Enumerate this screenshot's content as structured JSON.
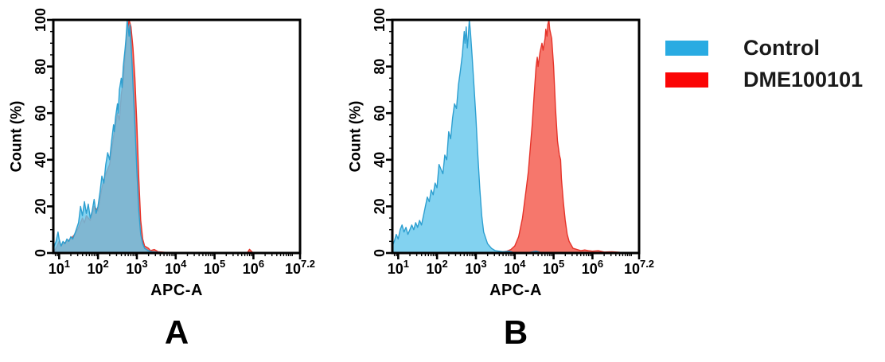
{
  "figure": {
    "background": "#ffffff",
    "legend": {
      "entries": [
        {
          "label": "Control",
          "swatch_color": "#29ABE2",
          "swatch_name": "control-color-swatch"
        },
        {
          "label": "DME100101",
          "swatch_color": "#FB0505",
          "swatch_name": "dme100101-color-swatch"
        }
      ]
    }
  },
  "chart_data": [
    {
      "panel": "A",
      "letter": "A",
      "type": "area",
      "subtype": "flow-cytometry-histogram-overlay",
      "x_scale": "log10",
      "xlabel": "APC-A",
      "ylabel": "Count  (%)",
      "xlim_log10": [
        0.85,
        7.2
      ],
      "ylim": [
        0,
        100
      ],
      "xticks": [
        {
          "v": 1,
          "base": "10",
          "exp": "1"
        },
        {
          "v": 2,
          "base": "10",
          "exp": "2"
        },
        {
          "v": 3,
          "base": "10",
          "exp": "3"
        },
        {
          "v": 4,
          "base": "10",
          "exp": "4"
        },
        {
          "v": 5,
          "base": "10",
          "exp": "5"
        },
        {
          "v": 6,
          "base": "10",
          "exp": "6"
        },
        {
          "v": 7.2,
          "base": "10",
          "exp": "7.2"
        }
      ],
      "yticks": [
        0,
        20,
        40,
        60,
        80,
        100
      ],
      "grid": false,
      "series": [
        {
          "name": "DME100101",
          "fill": "#F6776C",
          "stroke": "#E5332A",
          "opacity": 1,
          "points": [
            [
              0.88,
              1
            ],
            [
              0.95,
              3
            ],
            [
              1.0,
              5
            ],
            [
              1.05,
              3
            ],
            [
              1.1,
              4
            ],
            [
              1.2,
              5
            ],
            [
              1.3,
              6
            ],
            [
              1.4,
              8
            ],
            [
              1.5,
              11
            ],
            [
              1.6,
              15
            ],
            [
              1.65,
              13
            ],
            [
              1.7,
              16
            ],
            [
              1.8,
              14
            ],
            [
              1.9,
              20
            ],
            [
              2.0,
              18
            ],
            [
              2.1,
              28
            ],
            [
              2.2,
              34
            ],
            [
              2.3,
              38
            ],
            [
              2.4,
              50
            ],
            [
              2.5,
              60
            ],
            [
              2.55,
              57
            ],
            [
              2.6,
              68
            ],
            [
              2.65,
              74
            ],
            [
              2.7,
              85
            ],
            [
              2.75,
              95
            ],
            [
              2.8,
              100
            ],
            [
              2.85,
              97
            ],
            [
              2.9,
              88
            ],
            [
              2.95,
              75
            ],
            [
              3.0,
              55
            ],
            [
              3.05,
              32
            ],
            [
              3.1,
              14
            ],
            [
              3.15,
              6
            ],
            [
              3.2,
              3
            ],
            [
              3.3,
              2
            ],
            [
              3.35,
              1
            ],
            [
              3.45,
              1.5
            ],
            [
              3.55,
              0.5
            ],
            [
              3.7,
              0.3
            ],
            [
              4.0,
              0
            ],
            [
              5.0,
              0
            ],
            [
              5.85,
              0.2
            ],
            [
              5.9,
              1.6
            ],
            [
              5.98,
              0.2
            ],
            [
              6.2,
              0
            ]
          ]
        },
        {
          "name": "Control",
          "fill": "#63C7EC",
          "stroke": "#2D9FD0",
          "opacity": 0.8,
          "points": [
            [
              0.85,
              2
            ],
            [
              0.92,
              5
            ],
            [
              0.97,
              9
            ],
            [
              1.0,
              6
            ],
            [
              1.05,
              3
            ],
            [
              1.1,
              5
            ],
            [
              1.15,
              4
            ],
            [
              1.2,
              6
            ],
            [
              1.25,
              5
            ],
            [
              1.3,
              7
            ],
            [
              1.35,
              6
            ],
            [
              1.42,
              9
            ],
            [
              1.5,
              13
            ],
            [
              1.55,
              20
            ],
            [
              1.6,
              16
            ],
            [
              1.65,
              22
            ],
            [
              1.7,
              17
            ],
            [
              1.75,
              21
            ],
            [
              1.8,
              15
            ],
            [
              1.85,
              18
            ],
            [
              1.9,
              23
            ],
            [
              1.95,
              17
            ],
            [
              2.0,
              20
            ],
            [
              2.05,
              26
            ],
            [
              2.1,
              33
            ],
            [
              2.15,
              30
            ],
            [
              2.2,
              38
            ],
            [
              2.25,
              43
            ],
            [
              2.3,
              40
            ],
            [
              2.35,
              48
            ],
            [
              2.4,
              55
            ],
            [
              2.42,
              52
            ],
            [
              2.45,
              58
            ],
            [
              2.5,
              64
            ],
            [
              2.52,
              60
            ],
            [
              2.55,
              70
            ],
            [
              2.6,
              75
            ],
            [
              2.62,
              71
            ],
            [
              2.65,
              80
            ],
            [
              2.7,
              88
            ],
            [
              2.72,
              92
            ],
            [
              2.75,
              100
            ],
            [
              2.78,
              96
            ],
            [
              2.8,
              93
            ],
            [
              2.82,
              98
            ],
            [
              2.85,
              90
            ],
            [
              2.88,
              80
            ],
            [
              2.9,
              72
            ],
            [
              2.95,
              55
            ],
            [
              3.0,
              35
            ],
            [
              3.05,
              18
            ],
            [
              3.1,
              8
            ],
            [
              3.15,
              4
            ],
            [
              3.2,
              2
            ],
            [
              3.3,
              1
            ],
            [
              3.4,
              0.5
            ],
            [
              3.6,
              0.3
            ],
            [
              3.8,
              0
            ]
          ]
        }
      ]
    },
    {
      "panel": "B",
      "letter": "B",
      "type": "area",
      "subtype": "flow-cytometry-histogram-overlay",
      "x_scale": "log10",
      "xlabel": "APC-A",
      "ylabel": "Count  (%)",
      "xlim_log10": [
        0.85,
        7.2
      ],
      "ylim": [
        0,
        100
      ],
      "xticks": [
        {
          "v": 1,
          "base": "10",
          "exp": "1"
        },
        {
          "v": 2,
          "base": "10",
          "exp": "2"
        },
        {
          "v": 3,
          "base": "10",
          "exp": "3"
        },
        {
          "v": 4,
          "base": "10",
          "exp": "4"
        },
        {
          "v": 5,
          "base": "10",
          "exp": "5"
        },
        {
          "v": 6,
          "base": "10",
          "exp": "6"
        },
        {
          "v": 7.2,
          "base": "10",
          "exp": "7.2"
        }
      ],
      "yticks": [
        0,
        20,
        40,
        60,
        80,
        100
      ],
      "grid": false,
      "series": [
        {
          "name": "DME100101",
          "fill": "#F6776C",
          "stroke": "#E5332A",
          "opacity": 1,
          "points": [
            [
              3.55,
              0.2
            ],
            [
              3.7,
              0.5
            ],
            [
              3.8,
              0.8
            ],
            [
              3.9,
              1.5
            ],
            [
              4.0,
              3
            ],
            [
              4.1,
              7
            ],
            [
              4.2,
              15
            ],
            [
              4.3,
              28
            ],
            [
              4.35,
              35
            ],
            [
              4.4,
              45
            ],
            [
              4.45,
              55
            ],
            [
              4.5,
              68
            ],
            [
              4.55,
              80
            ],
            [
              4.58,
              84
            ],
            [
              4.6,
              80
            ],
            [
              4.65,
              86
            ],
            [
              4.7,
              90
            ],
            [
              4.73,
              87
            ],
            [
              4.78,
              92
            ],
            [
              4.8,
              96
            ],
            [
              4.83,
              93
            ],
            [
              4.85,
              98
            ],
            [
              4.88,
              100
            ],
            [
              4.9,
              96
            ],
            [
              4.95,
              92
            ],
            [
              5.0,
              80
            ],
            [
              5.05,
              62
            ],
            [
              5.1,
              48
            ],
            [
              5.15,
              42
            ],
            [
              5.18,
              40
            ],
            [
              5.2,
              32
            ],
            [
              5.25,
              22
            ],
            [
              5.3,
              14
            ],
            [
              5.35,
              8
            ],
            [
              5.4,
              5
            ],
            [
              5.5,
              2
            ],
            [
              5.6,
              1.5
            ],
            [
              5.7,
              1
            ],
            [
              5.8,
              1.3
            ],
            [
              5.9,
              1
            ],
            [
              6.0,
              0.8
            ],
            [
              6.15,
              1
            ],
            [
              6.3,
              0.4
            ],
            [
              6.5,
              0.5
            ],
            [
              6.7,
              0.3
            ],
            [
              6.95,
              0.2
            ]
          ]
        },
        {
          "name": "Control",
          "fill": "#63C7EC",
          "stroke": "#2D9FD0",
          "opacity": 0.8,
          "points": [
            [
              0.85,
              3
            ],
            [
              0.9,
              5
            ],
            [
              0.95,
              8
            ],
            [
              1.0,
              6
            ],
            [
              1.05,
              10
            ],
            [
              1.1,
              12
            ],
            [
              1.15,
              9
            ],
            [
              1.2,
              11
            ],
            [
              1.25,
              8
            ],
            [
              1.3,
              10
            ],
            [
              1.35,
              12
            ],
            [
              1.4,
              10
            ],
            [
              1.45,
              13
            ],
            [
              1.5,
              11
            ],
            [
              1.55,
              14
            ],
            [
              1.6,
              12
            ],
            [
              1.65,
              16
            ],
            [
              1.7,
              20
            ],
            [
              1.75,
              24
            ],
            [
              1.8,
              22
            ],
            [
              1.85,
              27
            ],
            [
              1.9,
              25
            ],
            [
              1.95,
              30
            ],
            [
              2.0,
              28
            ],
            [
              2.05,
              38
            ],
            [
              2.1,
              36
            ],
            [
              2.15,
              34
            ],
            [
              2.2,
              42
            ],
            [
              2.25,
              40
            ],
            [
              2.3,
              52
            ],
            [
              2.35,
              49
            ],
            [
              2.4,
              58
            ],
            [
              2.45,
              64
            ],
            [
              2.5,
              62
            ],
            [
              2.55,
              72
            ],
            [
              2.6,
              78
            ],
            [
              2.65,
              85
            ],
            [
              2.7,
              95
            ],
            [
              2.72,
              90
            ],
            [
              2.75,
              97
            ],
            [
              2.78,
              88
            ],
            [
              2.8,
              92
            ],
            [
              2.83,
              100
            ],
            [
              2.86,
              95
            ],
            [
              2.9,
              85
            ],
            [
              2.95,
              72
            ],
            [
              3.0,
              58
            ],
            [
              3.05,
              42
            ],
            [
              3.1,
              28
            ],
            [
              3.15,
              16
            ],
            [
              3.2,
              9
            ],
            [
              3.3,
              4
            ],
            [
              3.4,
              2
            ],
            [
              3.5,
              1
            ],
            [
              3.7,
              0.5
            ],
            [
              3.85,
              0.8
            ],
            [
              3.95,
              0.3
            ],
            [
              4.3,
              0
            ],
            [
              4.55,
              0.8
            ],
            [
              4.65,
              0.3
            ]
          ]
        }
      ]
    }
  ]
}
